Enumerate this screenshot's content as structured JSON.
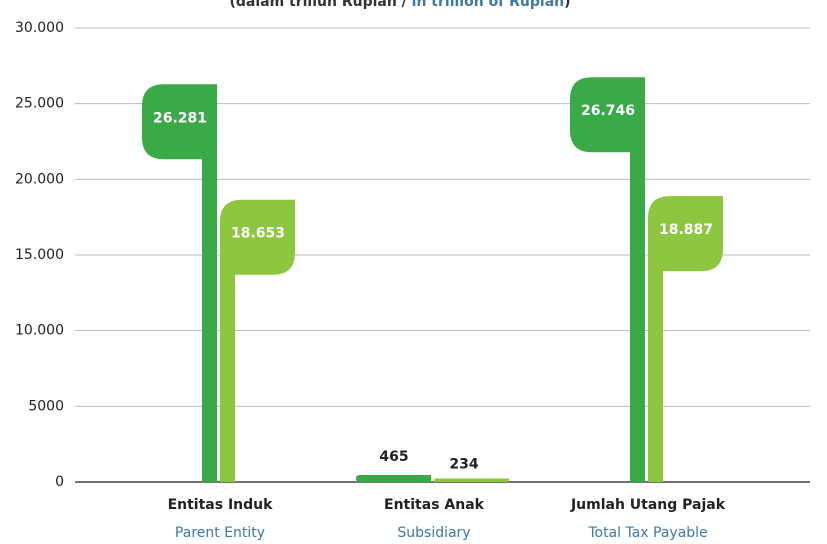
{
  "chart_data": {
    "type": "bar",
    "subtitle": [
      "(dalam triliun Rupiah / ",
      "in trillion of Rupiah",
      ")"
    ],
    "categories": [
      "Entitas Induk",
      "Entitas Anak",
      "Jumlah Utang Pajak"
    ],
    "categories_en": [
      "Parent Entity",
      "Subsidiary",
      "Total Tax Payable"
    ],
    "series": [
      {
        "color": "#3aaa48",
        "values": [
          26281,
          465,
          26746
        ],
        "value_labels": [
          "26.281",
          "465",
          "26.746"
        ]
      },
      {
        "color": "#8dc63f",
        "values": [
          18653,
          234,
          18887
        ],
        "value_labels": [
          "18.653",
          "234",
          "18.887"
        ]
      }
    ],
    "ylim": [
      0,
      30000
    ],
    "yticks": [
      0,
      5000,
      {
        "value": 10000,
        "label": "10.000"
      },
      {
        "value": 15000,
        "label": "15.000"
      },
      {
        "value": 20000,
        "label": "20.000"
      },
      {
        "value": 25000,
        "label": "25.000"
      },
      {
        "value": 30000,
        "label": "30.000"
      }
    ],
    "grid": true
  }
}
